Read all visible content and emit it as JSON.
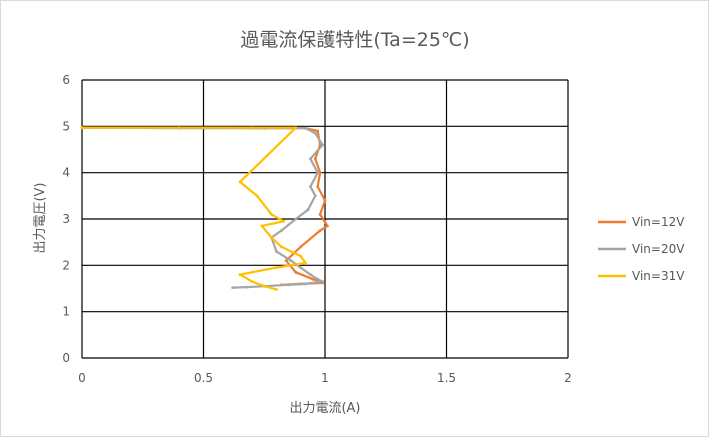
{
  "chart_data": {
    "type": "line",
    "title": "過電流保護特性(Ta=25℃)",
    "xlabel": "出力電流(A)",
    "ylabel": "出力電圧(V)",
    "xlim": [
      0,
      2
    ],
    "ylim": [
      0,
      6
    ],
    "x_ticks": [
      "0",
      "0.5",
      "1",
      "1.5",
      "2"
    ],
    "y_ticks": [
      "0",
      "1",
      "2",
      "3",
      "4",
      "5",
      "6"
    ],
    "grid": true,
    "legend_position": "right",
    "series": [
      {
        "name": "Vin=12V",
        "color": "#ED7D31",
        "points": [
          [
            0,
            4.97
          ],
          [
            0.4,
            4.97
          ],
          [
            0.75,
            4.96
          ],
          [
            0.92,
            4.96
          ],
          [
            0.97,
            4.9
          ],
          [
            0.98,
            4.6
          ],
          [
            0.96,
            4.3
          ],
          [
            0.98,
            4.0
          ],
          [
            0.97,
            3.7
          ],
          [
            1.0,
            3.4
          ],
          [
            0.98,
            3.1
          ],
          [
            1.01,
            2.85
          ],
          [
            0.98,
            2.75
          ],
          [
            0.9,
            2.4
          ],
          [
            0.84,
            2.1
          ],
          [
            0.88,
            1.85
          ],
          [
            0.95,
            1.7
          ],
          [
            0.99,
            1.62
          ],
          [
            0.9,
            1.6
          ],
          [
            0.82,
            1.58
          ]
        ]
      },
      {
        "name": "Vin=20V",
        "color": "#A5A5A5",
        "points": [
          [
            0,
            4.97
          ],
          [
            0.4,
            4.96
          ],
          [
            0.75,
            4.96
          ],
          [
            0.92,
            4.96
          ],
          [
            0.96,
            4.85
          ],
          [
            0.99,
            4.6
          ],
          [
            0.94,
            4.3
          ],
          [
            0.97,
            4.0
          ],
          [
            0.94,
            3.7
          ],
          [
            0.96,
            3.5
          ],
          [
            0.93,
            3.2
          ],
          [
            0.88,
            3.0
          ],
          [
            0.82,
            2.75
          ],
          [
            0.78,
            2.6
          ],
          [
            0.8,
            2.3
          ],
          [
            0.86,
            2.1
          ],
          [
            0.9,
            1.95
          ],
          [
            0.94,
            1.8
          ],
          [
            0.97,
            1.7
          ],
          [
            0.99,
            1.65
          ],
          [
            0.92,
            1.6
          ],
          [
            0.85,
            1.58
          ],
          [
            0.75,
            1.55
          ],
          [
            0.68,
            1.53
          ],
          [
            0.62,
            1.52
          ]
        ]
      },
      {
        "name": "Vin=31V",
        "color": "#FFC000",
        "points": [
          [
            0,
            4.97
          ],
          [
            0.4,
            4.97
          ],
          [
            0.7,
            4.97
          ],
          [
            0.88,
            4.97
          ],
          [
            0.65,
            3.8
          ],
          [
            0.72,
            3.5
          ],
          [
            0.78,
            3.1
          ],
          [
            0.83,
            2.95
          ],
          [
            0.74,
            2.85
          ],
          [
            0.78,
            2.6
          ],
          [
            0.82,
            2.4
          ],
          [
            0.9,
            2.2
          ],
          [
            0.92,
            2.05
          ],
          [
            0.8,
            1.95
          ],
          [
            0.7,
            1.85
          ],
          [
            0.65,
            1.8
          ],
          [
            0.7,
            1.65
          ],
          [
            0.75,
            1.55
          ],
          [
            0.8,
            1.48
          ]
        ]
      }
    ]
  }
}
